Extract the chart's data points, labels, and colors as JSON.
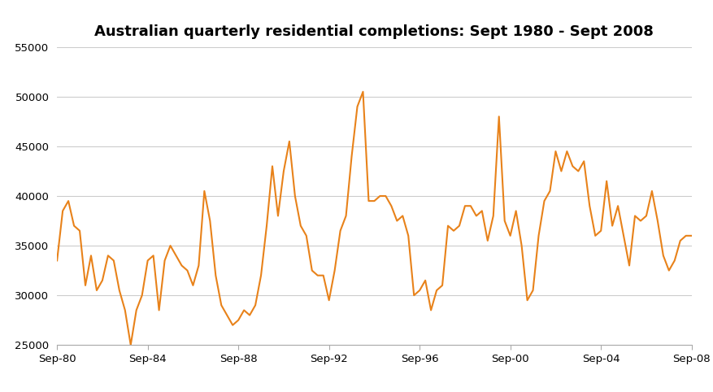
{
  "title": "Australian quarterly residential completions: Sept 1980 - Sept 2008",
  "line_color": "#E8821A",
  "background_color": "#ffffff",
  "ylim": [
    25000,
    55000
  ],
  "yticks": [
    25000,
    30000,
    35000,
    40000,
    45000,
    50000,
    55000
  ],
  "xtick_labels": [
    "Sep-80",
    "Sep-84",
    "Sep-88",
    "Sep-92",
    "Sep-96",
    "Sep-00",
    "Sep-04",
    "Sep-08"
  ],
  "xtick_positions": [
    0,
    16,
    32,
    48,
    64,
    80,
    96,
    112
  ],
  "title_fontsize": 13,
  "values": [
    33500,
    38500,
    39500,
    37000,
    36500,
    31000,
    34000,
    30500,
    31500,
    34000,
    33500,
    30500,
    28500,
    25000,
    28500,
    30000,
    33500,
    34000,
    28500,
    33500,
    35000,
    34000,
    33000,
    32500,
    31000,
    33000,
    40500,
    37500,
    32000,
    29000,
    28000,
    27000,
    27500,
    28500,
    28000,
    29000,
    32000,
    37000,
    43000,
    38000,
    42500,
    45500,
    40000,
    37000,
    36000,
    32500,
    32000,
    32000,
    29500,
    32500,
    36500,
    38000,
    44000,
    49000,
    50500,
    39500,
    39500,
    40000,
    40000,
    39000,
    37500,
    38000,
    36000,
    30000,
    30500,
    31500,
    28500,
    30500,
    31000,
    37000,
    36500,
    37000,
    39000,
    39000,
    38000,
    38500,
    35500,
    38000,
    48000,
    37500,
    36000,
    38500,
    35000,
    29500,
    30500,
    36000,
    39500,
    40500,
    44500,
    42500,
    44500,
    43000,
    42500,
    43500,
    39000,
    36000,
    36500,
    41500,
    37000,
    39000,
    36000,
    33000,
    38000,
    37500,
    38000,
    40500,
    37500,
    34000,
    32500,
    33500,
    35500,
    36000,
    36000
  ]
}
